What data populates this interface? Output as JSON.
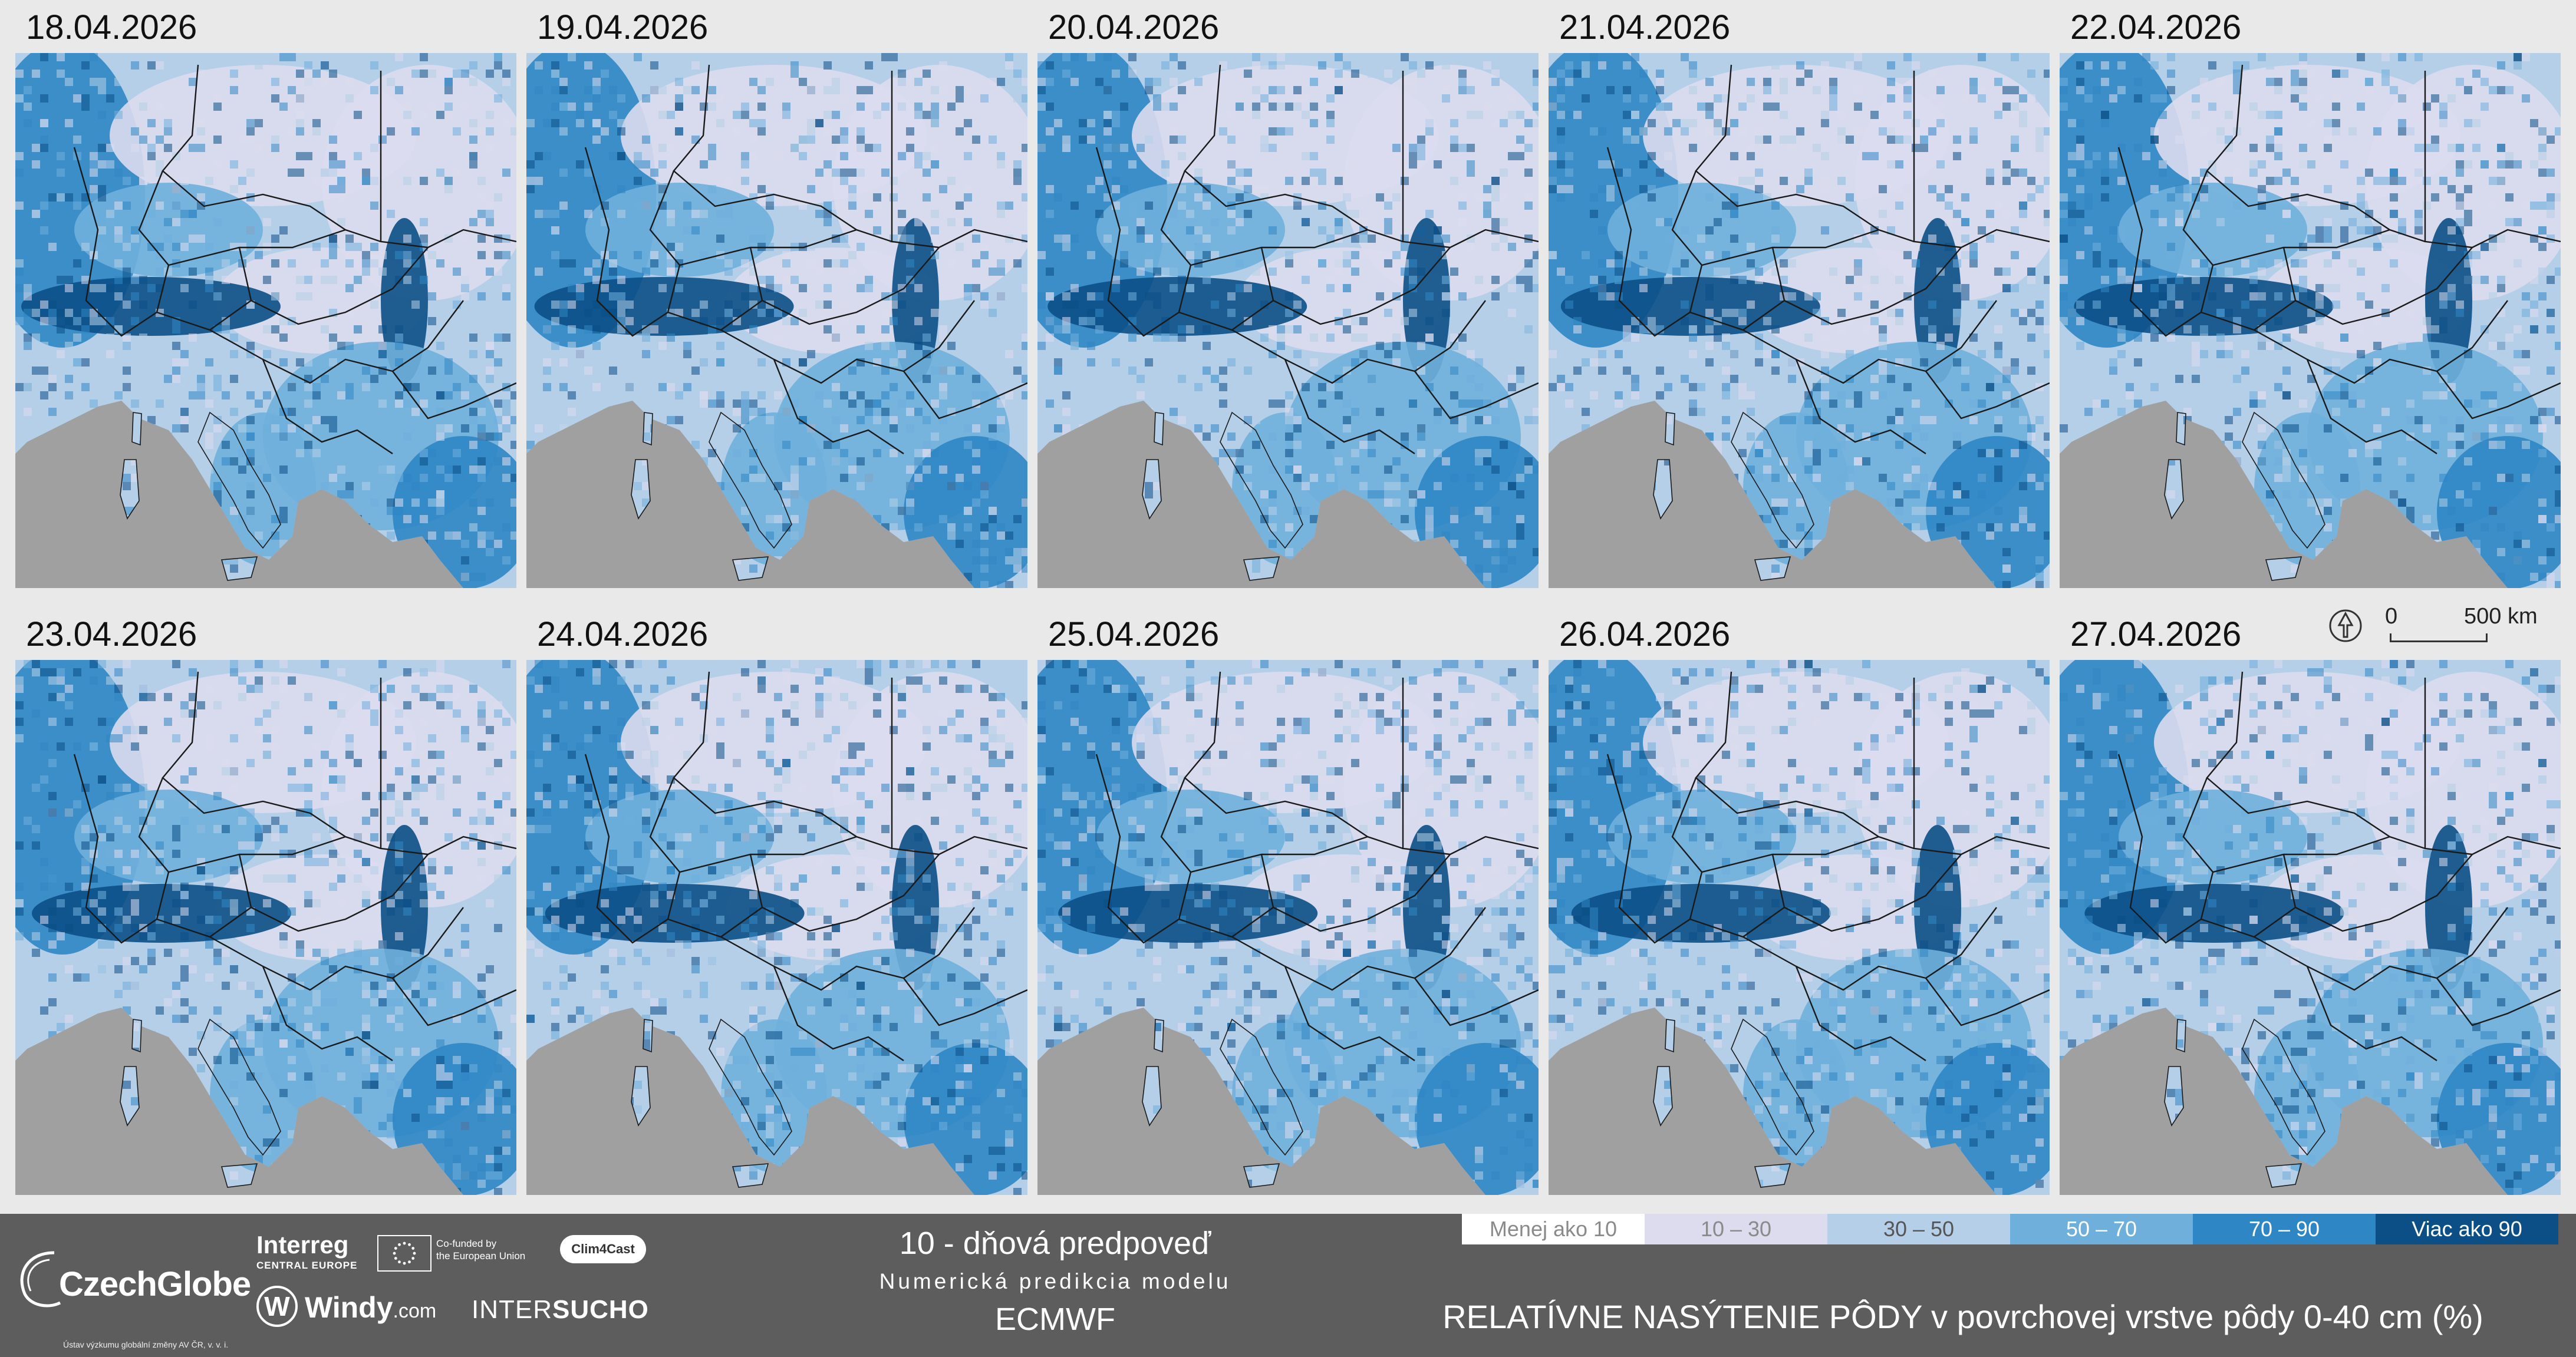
{
  "maps": [
    {
      "date": "18.04.2026"
    },
    {
      "date": "19.04.2026"
    },
    {
      "date": "20.04.2026"
    },
    {
      "date": "21.04.2026"
    },
    {
      "date": "22.04.2026"
    },
    {
      "date": "23.04.2026"
    },
    {
      "date": "24.04.2026"
    },
    {
      "date": "25.04.2026"
    },
    {
      "date": "26.04.2026"
    },
    {
      "date": "27.04.2026"
    }
  ],
  "scale_bar": {
    "zero": "0",
    "label": "500 km"
  },
  "title": {
    "line1": "10 - dňová predpoveď",
    "line2": "Numerická predikcia modelu",
    "line3": "ECMWF"
  },
  "variable_title": "RELATÍVNE NASÝTENIE PÔDY v povrchovej vrstve pôdy 0-40 cm (%)",
  "legend": [
    {
      "label": "Menej ako 10",
      "color": "#ffffff",
      "text_color": "#8a8a8a"
    },
    {
      "label": "10 – 30",
      "color": "#dcdcee",
      "text_color": "#8a8a8a"
    },
    {
      "label": "30 – 50",
      "color": "#b5cfe8",
      "text_color": "#555555"
    },
    {
      "label": "50 – 70",
      "color": "#6fafdc",
      "text_color": "#ffffff"
    },
    {
      "label": "70 – 90",
      "color": "#2f86c4",
      "text_color": "#ffffff"
    },
    {
      "label": "Viac ako 90",
      "color": "#0b4f86",
      "text_color": "#ffffff"
    }
  ],
  "logos": {
    "czechglobe": {
      "name": "CzechGlobe",
      "sub": "Ústav výzkumu globální změny AV ČR, v. v. i."
    },
    "interreg": {
      "name": "Interreg",
      "sub": "CENTRAL EUROPE"
    },
    "eu": {
      "line1": "Co-funded by",
      "line2": "the European Union"
    },
    "clim4cast": "Clim4Cast",
    "windy": {
      "name": "Windy",
      "suffix": ".com"
    },
    "intersucho": {
      "part1": "INTER",
      "part2": "SUCHO"
    }
  },
  "colors": {
    "sea": "#a0a0a0",
    "footer_bg": "#5d5d5d",
    "page_bg": "#e9e9e9"
  }
}
